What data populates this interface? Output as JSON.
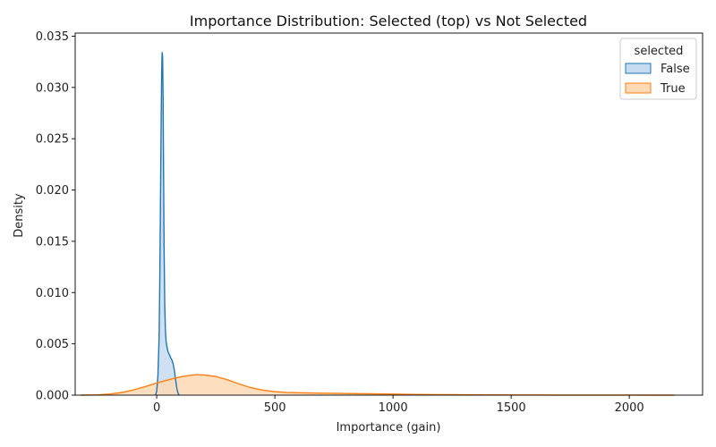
{
  "chart_data": {
    "type": "area",
    "title": "Importance Distribution: Selected (top) vs Not Selected",
    "xlabel": "Importance (gain)",
    "ylabel": "Density",
    "xlim": [
      -345,
      2310
    ],
    "ylim": [
      0,
      0.0353
    ],
    "xticks": [
      0,
      500,
      1000,
      1500,
      2000
    ],
    "xtick_labels": [
      "0",
      "500",
      "1000",
      "1500",
      "2000"
    ],
    "yticks": [
      0.0,
      0.005,
      0.01,
      0.015,
      0.02,
      0.025,
      0.03,
      0.035
    ],
    "ytick_labels": [
      "0.000",
      "0.005",
      "0.010",
      "0.015",
      "0.020",
      "0.025",
      "0.030",
      "0.035"
    ],
    "grid": false,
    "legend": {
      "title": "selected",
      "placement": "top-right"
    },
    "series": [
      {
        "name": "False",
        "color": "#1f77b4",
        "fill": "#c6dbef",
        "x": [
          -5,
          0,
          5,
          10,
          13,
          16,
          19,
          21,
          23,
          25,
          27,
          29,
          31,
          34,
          37,
          40,
          45,
          50,
          55,
          60,
          65,
          70,
          75,
          80,
          85,
          90,
          95
        ],
        "y": [
          0.0,
          0.0004,
          0.0018,
          0.0055,
          0.011,
          0.019,
          0.027,
          0.0315,
          0.0334,
          0.033,
          0.029,
          0.022,
          0.0148,
          0.0088,
          0.0062,
          0.0052,
          0.0045,
          0.0041,
          0.0039,
          0.0036,
          0.0034,
          0.003,
          0.0024,
          0.0015,
          0.0007,
          0.0002,
          0.0
        ]
      },
      {
        "name": "True",
        "color": "#ff7f0e",
        "fill": "#fdd9b5",
        "x": [
          -320,
          -250,
          -200,
          -150,
          -100,
          -50,
          0,
          50,
          100,
          150,
          170,
          200,
          250,
          300,
          350,
          400,
          450,
          500,
          550,
          600,
          700,
          800,
          900,
          1000,
          1100,
          1200,
          1300,
          1400,
          1500,
          1600,
          1700,
          1800,
          1900,
          2000,
          2100,
          2190
        ],
        "y": [
          0.0,
          3e-05,
          0.0001,
          0.00025,
          0.0005,
          0.00082,
          0.00118,
          0.0015,
          0.00178,
          0.00196,
          0.002,
          0.00197,
          0.00182,
          0.0015,
          0.00108,
          0.00072,
          0.00048,
          0.00034,
          0.00027,
          0.00023,
          0.00019,
          0.00016,
          0.00013,
          0.0001,
          7e-05,
          5e-05,
          4e-05,
          3e-05,
          2e-05,
          1.5e-05,
          1e-05,
          8e-06,
          5e-06,
          3e-06,
          1e-06,
          0.0
        ]
      }
    ]
  }
}
